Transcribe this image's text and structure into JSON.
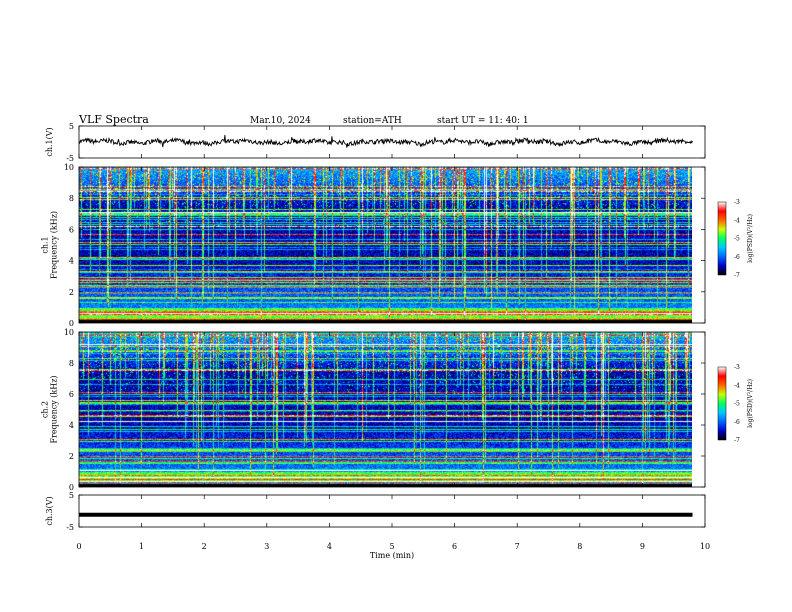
{
  "header": {
    "title": "VLF  Spectra",
    "date": "Mar.10, 2024",
    "station": "station=ATH",
    "start": "start  UT  =    11: 40: 1"
  },
  "chart_data": [
    {
      "type": "line",
      "id": "ch1-waveform",
      "ylabel": "ch.1(V)",
      "ylim": [
        -5,
        5
      ],
      "xlim": [
        0,
        10
      ],
      "data_end_x": 9.8,
      "y_ticks": [
        "5",
        "-5"
      ],
      "baseline": 0
    },
    {
      "type": "heatmap",
      "id": "ch1-spectrogram",
      "ylabel": "ch.1\nFrequency (kHz)",
      "ylim": [
        0,
        10
      ],
      "xlim": [
        0,
        10
      ],
      "data_end_x": 9.8,
      "y_ticks": [
        "0",
        "2",
        "4",
        "6",
        "8",
        "10"
      ],
      "colorbar": {
        "label": "log(PSD)(V²/Hz)",
        "range": [
          -7,
          -3
        ],
        "ticks": [
          "-3",
          "-4",
          "-5",
          "-6",
          "-7"
        ]
      }
    },
    {
      "type": "heatmap",
      "id": "ch2-spectrogram",
      "ylabel": "ch.2\nFrequency (kHz)",
      "ylim": [
        0,
        10
      ],
      "xlim": [
        0,
        10
      ],
      "data_end_x": 9.8,
      "y_ticks": [
        "0",
        "2",
        "4",
        "6",
        "8",
        "10"
      ],
      "colorbar": {
        "label": "log(PSD)(V²/Hz)",
        "range": [
          -7,
          -3
        ],
        "ticks": [
          "-3",
          "-4",
          "-5",
          "-6",
          "-7"
        ]
      }
    },
    {
      "type": "line",
      "id": "ch3-waveform",
      "ylabel": "ch.3(V)",
      "ylim": [
        -5,
        5
      ],
      "xlim": [
        0,
        10
      ],
      "data_end_x": 9.8,
      "y_ticks": [
        "5",
        "-5"
      ],
      "baseline": -1.2
    }
  ],
  "x_axis": {
    "label": "Time  (min)",
    "ticks": [
      "0",
      "1",
      "2",
      "3",
      "4",
      "5",
      "6",
      "7",
      "8",
      "9",
      "10"
    ]
  },
  "colors": {
    "colormap": [
      "#000000",
      "#0000c8",
      "#0064ff",
      "#00c8ff",
      "#00ff64",
      "#c8ff00",
      "#ff6400",
      "#ff0000",
      "#ffffff"
    ]
  }
}
